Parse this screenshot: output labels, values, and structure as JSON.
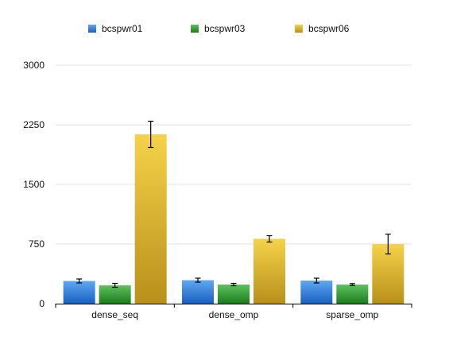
{
  "chart_data": {
    "type": "bar",
    "categories": [
      "dense_seq",
      "dense_omp",
      "sparse_omp"
    ],
    "series": [
      {
        "name": "bcspwr01",
        "values": [
          285,
          295,
          290
        ],
        "error": [
          25,
          25,
          30
        ],
        "color": "#2f7fe0",
        "color_light": "#5ea8f2",
        "color_dark": "#1a5fbf"
      },
      {
        "name": "bcspwr03",
        "values": [
          230,
          240,
          240
        ],
        "error": [
          25,
          15,
          12
        ],
        "color": "#2f9a2f",
        "color_light": "#5cc25c",
        "color_dark": "#1e7a1e"
      },
      {
        "name": "bcspwr06",
        "values": [
          2130,
          815,
          750
        ],
        "error": [
          165,
          40,
          125
        ],
        "color": "#e0b420",
        "color_light": "#f5d24a",
        "color_dark": "#b8901a"
      }
    ],
    "title": "",
    "xlabel": "",
    "ylabel": "",
    "ylim": [
      0,
      3000
    ],
    "yticks": [
      0,
      750,
      1500,
      2250,
      3000
    ],
    "grid": true,
    "legend_position": "top"
  }
}
